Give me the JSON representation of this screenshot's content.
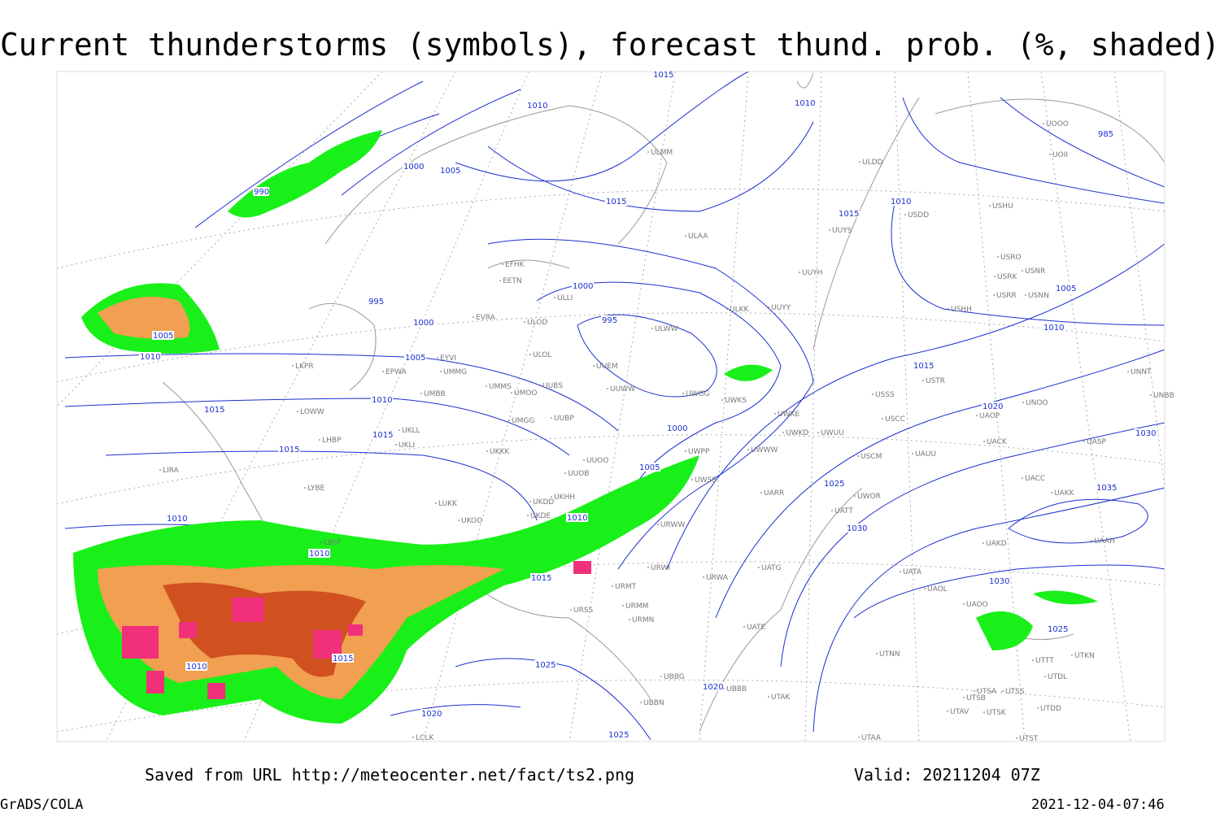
{
  "title": "Current thunderstorms (symbols), forecast thund. prob. (%, shaded)",
  "footer": {
    "source": "Saved from URL http://meteocenter.net/fact/ts2.png",
    "valid": "Valid: 20211204 07Z",
    "credit": "GrADS/COLA",
    "timestamp": "2021-12-04-07:46"
  },
  "isobar_labels": [
    "1015",
    "1010",
    "1010",
    "1000",
    "1005",
    "1015",
    "990",
    "995",
    "1005",
    "1010",
    "1000",
    "1005",
    "1010",
    "1015",
    "1015",
    "1015",
    "1010",
    "1010",
    "1015",
    "1010",
    "1005",
    "1000",
    "1000",
    "995",
    "1010",
    "1015",
    "1005",
    "1010",
    "1015",
    "1020",
    "1030",
    "1025",
    "1035",
    "1030",
    "1030",
    "1025",
    "1010",
    "1015",
    "1025",
    "1020",
    "1020",
    "1025",
    "985"
  ],
  "stations": [
    "ULMM",
    "ULDD",
    "USDD",
    "USHU",
    "ULAA",
    "UUYS",
    "UUYH",
    "USRO",
    "USRK",
    "USNR",
    "USRR",
    "USNN",
    "USHH",
    "ULKK",
    "UUYY",
    "EFHK",
    "EETN",
    "EVRA",
    "ULLI",
    "ULOD",
    "ULWW",
    "UUEM",
    "ULOL",
    "EYVI",
    "UMMG",
    "EPWA",
    "UMMS",
    "UMOO",
    "UUBS",
    "UMBB",
    "UUWW",
    "UWGG",
    "UWKS",
    "UMGG",
    "UUBP",
    "UKLL",
    "UKLI",
    "LOWW",
    "LKPR",
    "LHBP",
    "UKKK",
    "UUOO",
    "UUOB",
    "LIRA",
    "LYBE",
    "LUKK",
    "UKHH",
    "UKDD",
    "UKOO",
    "UKDE",
    "LBSF",
    "UWPP",
    "UWSS",
    "URWW",
    "URWI",
    "URWA",
    "URMT",
    "URSS",
    "URMM",
    "URMN",
    "UWKE",
    "UWKD",
    "UWUU",
    "UWWW",
    "UARR",
    "UWOR",
    "UATT",
    "UAKD",
    "UATG",
    "UATE",
    "UATA",
    "UAOL",
    "UAOO",
    "UTNN",
    "USSS",
    "USTR",
    "USCC",
    "USCM",
    "UAUU",
    "UACK",
    "UAOP",
    "UNOO",
    "UNNT",
    "UNBB",
    "UASP",
    "UACC",
    "UAKK",
    "UAAH",
    "UTTT",
    "UTDL",
    "UTKN",
    "UTSA",
    "UTSB",
    "UTSS",
    "UTAV",
    "UTSK",
    "UTDD",
    "UTAA",
    "UTST",
    "UBBG",
    "UBBB",
    "UTAK",
    "UBBN",
    "LCLK",
    "UOOO",
    "UOII"
  ]
}
